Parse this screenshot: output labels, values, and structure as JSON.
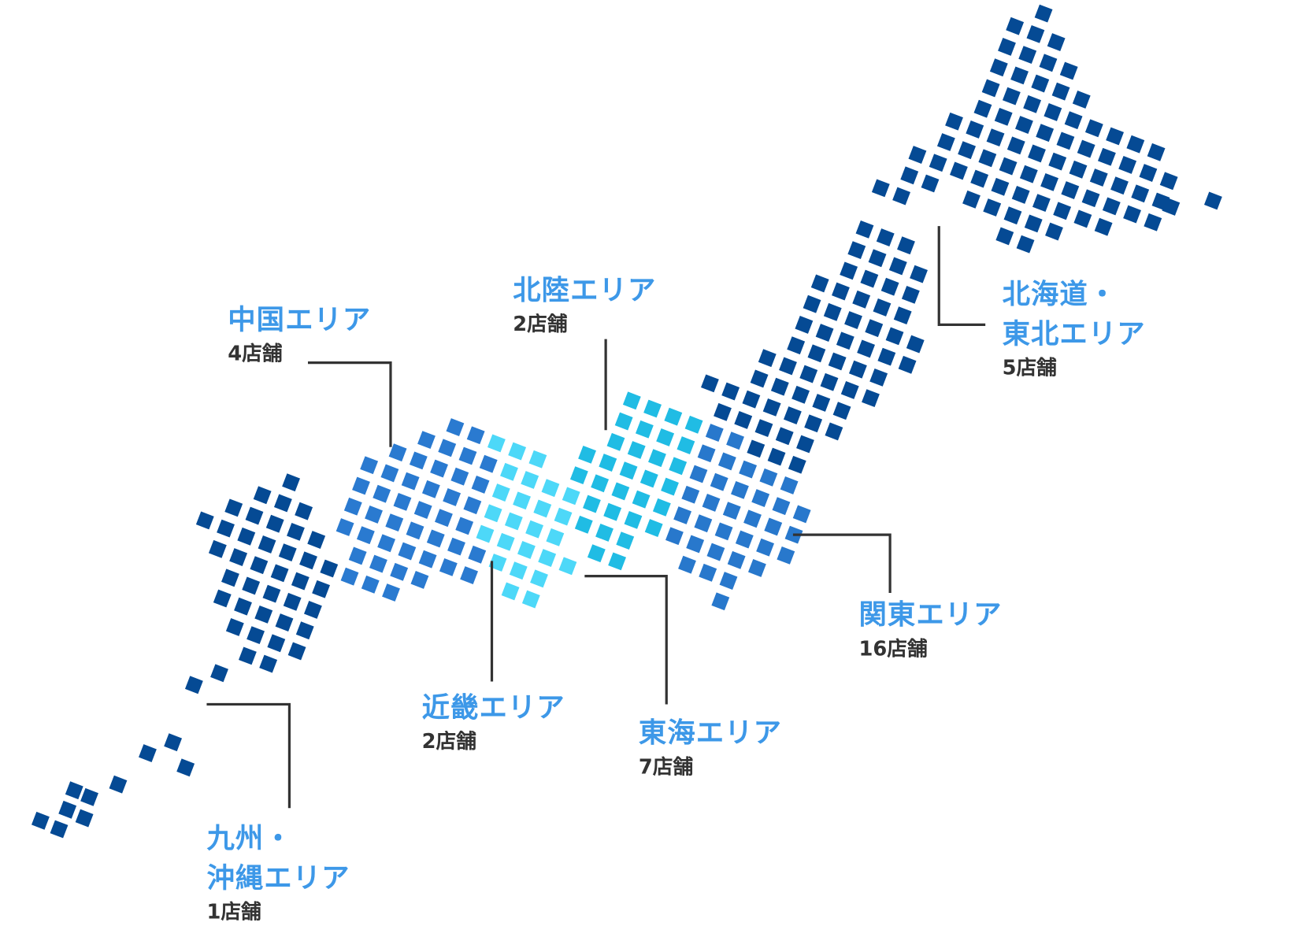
{
  "colors": {
    "label": "#3d98e8",
    "count": "#333333",
    "leader": "#333333",
    "hokkaido_tohoku": "#054a94",
    "kanto": "#2878cc",
    "tokai": "#20bce4",
    "kinki": "#4dd8f8",
    "chugoku_shikoku": "#2a7ad0",
    "kyushu_okinawa": "#054a94"
  },
  "areas": {
    "chugoku": {
      "name": "中国エリア",
      "count": "4店舗"
    },
    "hokuriku": {
      "name": "北陸エリア",
      "count": "2店舗"
    },
    "hokkaido_tohoku": {
      "name_line1": "北海道・",
      "name_line2": "東北エリア",
      "count": "5店舗"
    },
    "kanto": {
      "name": "関東エリア",
      "count": "16店舗"
    },
    "kinki": {
      "name": "近畿エリア",
      "count": "2店舗"
    },
    "tokai": {
      "name": "東海エリア",
      "count": "7店舗"
    },
    "kyushu_okinawa": {
      "name_line1": "九州・",
      "name_line2": "沖縄エリア",
      "count": "1店舗"
    }
  }
}
